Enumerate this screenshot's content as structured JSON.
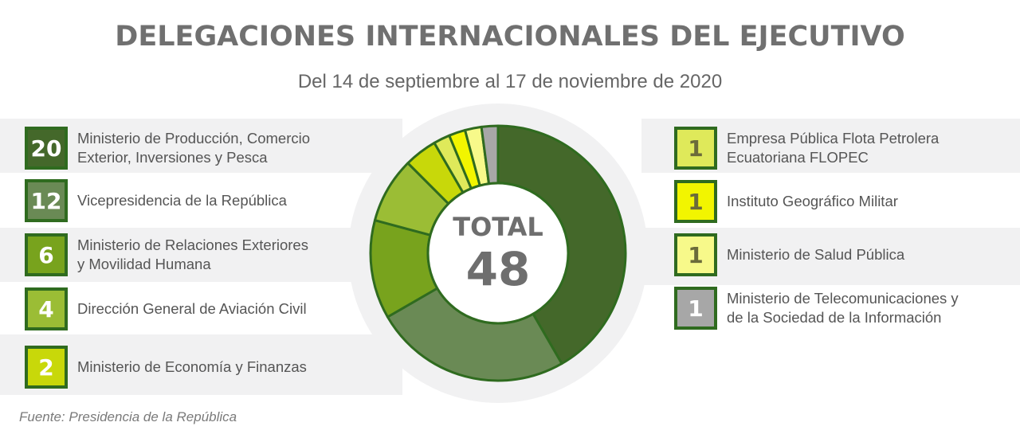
{
  "title": "DELEGACIONES INTERNACIONALES DEL EJECUTIVO",
  "subtitle": "Del 14 de septiembre al 17 de noviembre de 2020",
  "total": {
    "label": "TOTAL",
    "value": "48"
  },
  "source": "Fuente: Presidencia de la República",
  "chart_data": {
    "type": "pie",
    "variant": "donut",
    "total": 48,
    "slices": [
      {
        "value": 20,
        "label": "Ministerio de Producción, Comercio\nExterior, Inversiones y Pesca",
        "color": "#44682a"
      },
      {
        "value": 12,
        "label": "Vicepresidencia de la República",
        "color": "#6a8a55"
      },
      {
        "value": 6,
        "label": "Ministerio de Relaciones Exteriores\ny Movilidad Humana",
        "color": "#78a31d"
      },
      {
        "value": 4,
        "label": "Dirección General de Aviación Civil",
        "color": "#9bbd35"
      },
      {
        "value": 2,
        "label": "Ministerio de Economía y Finanzas",
        "color": "#c8d80a"
      },
      {
        "value": 1,
        "label": "Empresa Pública Flota Petrolera\nEcuatoriana FLOPEC",
        "color": "#dfe95a"
      },
      {
        "value": 1,
        "label": "Instituto Geográfico Militar",
        "color": "#f2f500"
      },
      {
        "value": 1,
        "label": "Ministerio de Salud Pública",
        "color": "#f7f98a"
      },
      {
        "value": 1,
        "label": "Ministerio de Telecomunicaciones y\nde la Sociedad de la Información",
        "color": "#a7a7a7"
      }
    ]
  }
}
